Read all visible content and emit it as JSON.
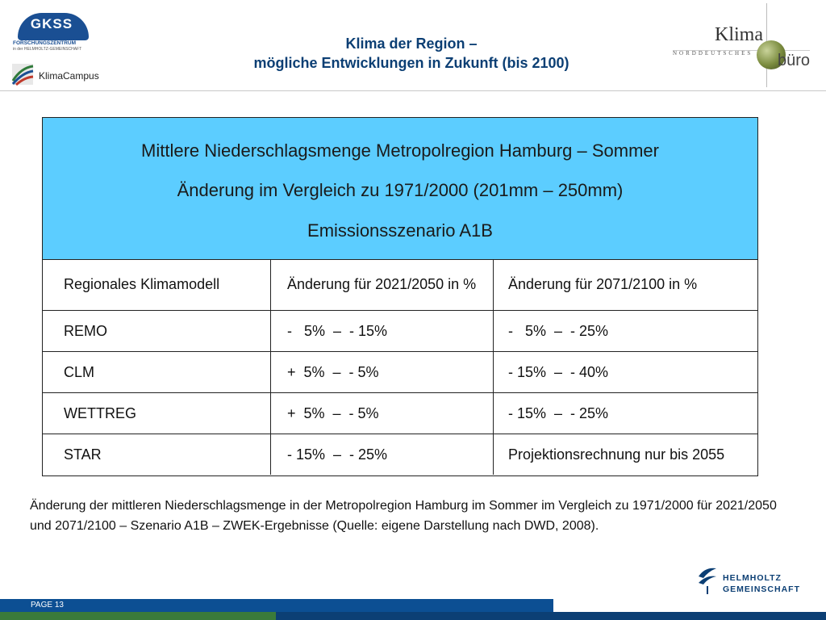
{
  "header": {
    "gkss_logo_text": "GKSS",
    "gkss_sub1": "FORSCHUNGSZENTRUM",
    "gkss_sub2": "in der HELMHOLTZ-GEMEINSCHAFT",
    "campus_label": "KlimaCampus",
    "title_line1": "Klima der Region –",
    "title_line2": "mögliche Entwicklungen in Zukunft (bis 2100)",
    "klima_word": "Klima",
    "nord_word": "NORDDEUTSCHES",
    "buero_word": "büro"
  },
  "table": {
    "heading": [
      "Mittlere Niederschlagsmenge Metropolregion Hamburg – Sommer",
      "Änderung im Vergleich zu 1971/2000 (201mm – 250mm)",
      "Emissionsszenario A1B"
    ],
    "columns": [
      "Regionales Klimamodell",
      "Änderung für 2021/2050 in %",
      "Änderung für 2071/2100 in %"
    ],
    "rows": [
      [
        "REMO",
        "-   5%  –  - 15%",
        "-   5%  –  - 25%"
      ],
      [
        "CLM",
        "+  5%  –  - 5%",
        "- 15%  –  - 40%"
      ],
      [
        "WETTREG",
        "+  5%  –  - 5%",
        "- 15%  –  - 25%"
      ],
      [
        "STAR",
        "- 15%  –  - 25%",
        "Projektionsrechnung nur bis 2055"
      ]
    ]
  },
  "caption": {
    "line1": "Änderung der mittleren Niederschlagsmenge in der Metropolregion Hamburg im Sommer im Vergleich zu 1971/2000 für 2021/2050",
    "line2": "und 2071/2100 – Szenario A1B – ZWEK-Ergebnisse (Quelle: eigene Darstellung nach DWD, 2008)."
  },
  "footer": {
    "page_label": "PAGE 13",
    "helmholtz_line1": "HELMHOLTZ",
    "helmholtz_line2": "GEMEINSCHAFT"
  },
  "colors": {
    "title": "#0c3f74",
    "table_header_bg": "#5ccdff",
    "footer_blue": "#0c4f93",
    "footer_green": "#3a7a3a"
  }
}
